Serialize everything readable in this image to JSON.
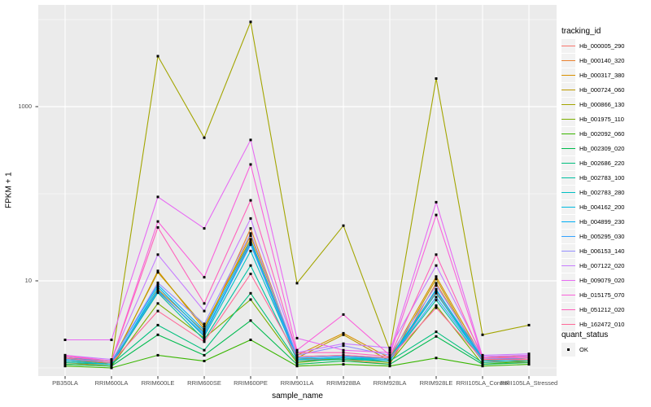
{
  "chart_data": {
    "type": "line",
    "xlabel": "sample_name",
    "ylabel": "FPKM + 1",
    "y_scale": "log10",
    "y_ticks": [
      "10",
      "1000"
    ],
    "y_tick_values": [
      10,
      1000
    ],
    "y_minor_gridlines": [
      1,
      100,
      10000
    ],
    "ylim": [
      0.9,
      15000
    ],
    "grid": true,
    "panel_bg": "#EBEBEB",
    "gridline_color": "#FFFFFF",
    "point_color": "#000000",
    "point_shape": "small-black-square",
    "categories": [
      "PB350LA",
      "RRIM600LA",
      "RRIM600LE",
      "RRIM600SE",
      "RRIM600PE",
      "RRIM901LA",
      "RRIM928BA",
      "RRIM928LA",
      "RRIM928LE",
      "RRII105LA_Control",
      "RRII105LA_Stressed"
    ],
    "legend": {
      "title": "tracking_id",
      "position": "right"
    },
    "quant_status": {
      "title": "quant_status",
      "items": [
        {
          "label": "OK",
          "marker": "black-square"
        }
      ]
    },
    "series": [
      {
        "name": "Hb_000005_290",
        "color": "#F8766D",
        "values": [
          1.2,
          1.1,
          7.5,
          2.4,
          28,
          1.2,
          1.3,
          1.2,
          7.5,
          1.2,
          1.15
        ]
      },
      {
        "name": "Hb_000140_320",
        "color": "#EA8331",
        "values": [
          1.15,
          1.05,
          8.0,
          2.6,
          40,
          1.3,
          1.25,
          1.1,
          9.4,
          1.25,
          1.2
        ]
      },
      {
        "name": "Hb_000317_380",
        "color": "#D89000",
        "values": [
          1.3,
          1.1,
          13,
          2.8,
          33,
          1.4,
          2.5,
          1.3,
          11.2,
          1.3,
          1.4
        ]
      },
      {
        "name": "Hb_000724_060",
        "color": "#C09B00",
        "values": [
          1.2,
          1.15,
          12.5,
          3.0,
          30,
          1.3,
          2.4,
          1.2,
          10.5,
          1.2,
          1.3
        ]
      },
      {
        "name": "Hb_000866_130",
        "color": "#A3A500",
        "values": [
          1.3,
          1.2,
          3800,
          440,
          9400,
          9.4,
          43,
          1.6,
          2100,
          2.4,
          3.1
        ]
      },
      {
        "name": "Hb_001975_110",
        "color": "#7CAE00",
        "values": [
          1.1,
          1.05,
          5.5,
          2.2,
          6.1,
          1.15,
          1.3,
          1.15,
          5.2,
          1.1,
          1.2
        ]
      },
      {
        "name": "Hb_002092_060",
        "color": "#39B600",
        "values": [
          1.05,
          1.0,
          1.4,
          1.2,
          2.1,
          1.05,
          1.1,
          1.05,
          1.3,
          1.05,
          1.1
        ]
      },
      {
        "name": "Hb_002309_020",
        "color": "#00BB4E",
        "values": [
          1.1,
          1.05,
          2.4,
          1.4,
          3.5,
          1.1,
          1.2,
          1.1,
          2.3,
          1.1,
          1.15
        ]
      },
      {
        "name": "Hb_002686_220",
        "color": "#00BF7D",
        "values": [
          1.15,
          1.1,
          3.1,
          1.6,
          7.2,
          1.2,
          1.25,
          1.2,
          2.6,
          1.15,
          1.2
        ]
      },
      {
        "name": "Hb_002783_100",
        "color": "#00C1A3",
        "values": [
          1.2,
          1.1,
          7.3,
          2.1,
          15,
          1.25,
          1.3,
          1.25,
          6.0,
          1.2,
          1.25
        ]
      },
      {
        "name": "Hb_002783_280",
        "color": "#00BFC4",
        "values": [
          1.25,
          1.15,
          7.8,
          2.3,
          22,
          1.3,
          1.35,
          1.3,
          7.2,
          1.25,
          1.3
        ]
      },
      {
        "name": "Hb_004162_200",
        "color": "#00BAE0",
        "values": [
          1.2,
          1.1,
          8.5,
          2.5,
          27,
          1.25,
          1.3,
          1.2,
          8.0,
          1.2,
          1.25
        ]
      },
      {
        "name": "Hb_004899_230",
        "color": "#00B0F6",
        "values": [
          1.3,
          1.2,
          9.0,
          2.7,
          29,
          1.35,
          1.4,
          1.3,
          7.8,
          1.3,
          1.35
        ]
      },
      {
        "name": "Hb_005295_030",
        "color": "#35A2FF",
        "values": [
          1.25,
          1.15,
          7.6,
          2.4,
          26,
          1.3,
          1.35,
          1.25,
          6.5,
          1.25,
          1.3
        ]
      },
      {
        "name": "Hb_006153_140",
        "color": "#9590FF",
        "values": [
          1.35,
          1.2,
          9.5,
          3.2,
          35,
          1.4,
          1.8,
          1.4,
          8.8,
          1.35,
          1.4
        ]
      },
      {
        "name": "Hb_007122_020",
        "color": "#C77CFF",
        "values": [
          1.4,
          1.25,
          20,
          4.5,
          52,
          1.5,
          1.9,
          1.7,
          15,
          1.4,
          1.45
        ]
      },
      {
        "name": "Hb_009079_020",
        "color": "#E76BF3",
        "values": [
          2.1,
          2.1,
          92,
          40,
          415,
          2.2,
          1.6,
          1.5,
          80,
          1.35,
          1.4
        ]
      },
      {
        "name": "Hb_015175_070",
        "color": "#FA62DB",
        "values": [
          1.4,
          1.2,
          48,
          11,
          217,
          1.6,
          4.1,
          1.4,
          57,
          1.3,
          1.35
        ]
      },
      {
        "name": "Hb_051212_020",
        "color": "#FF62BC",
        "values": [
          1.35,
          1.2,
          41,
          5.5,
          84,
          1.5,
          1.5,
          1.35,
          20,
          1.3,
          1.3
        ]
      },
      {
        "name": "Hb_162472_010",
        "color": "#FF6A98",
        "values": [
          1.3,
          1.15,
          4.5,
          2.0,
          12,
          1.35,
          1.4,
          1.3,
          4.9,
          1.25,
          1.25
        ]
      }
    ]
  }
}
